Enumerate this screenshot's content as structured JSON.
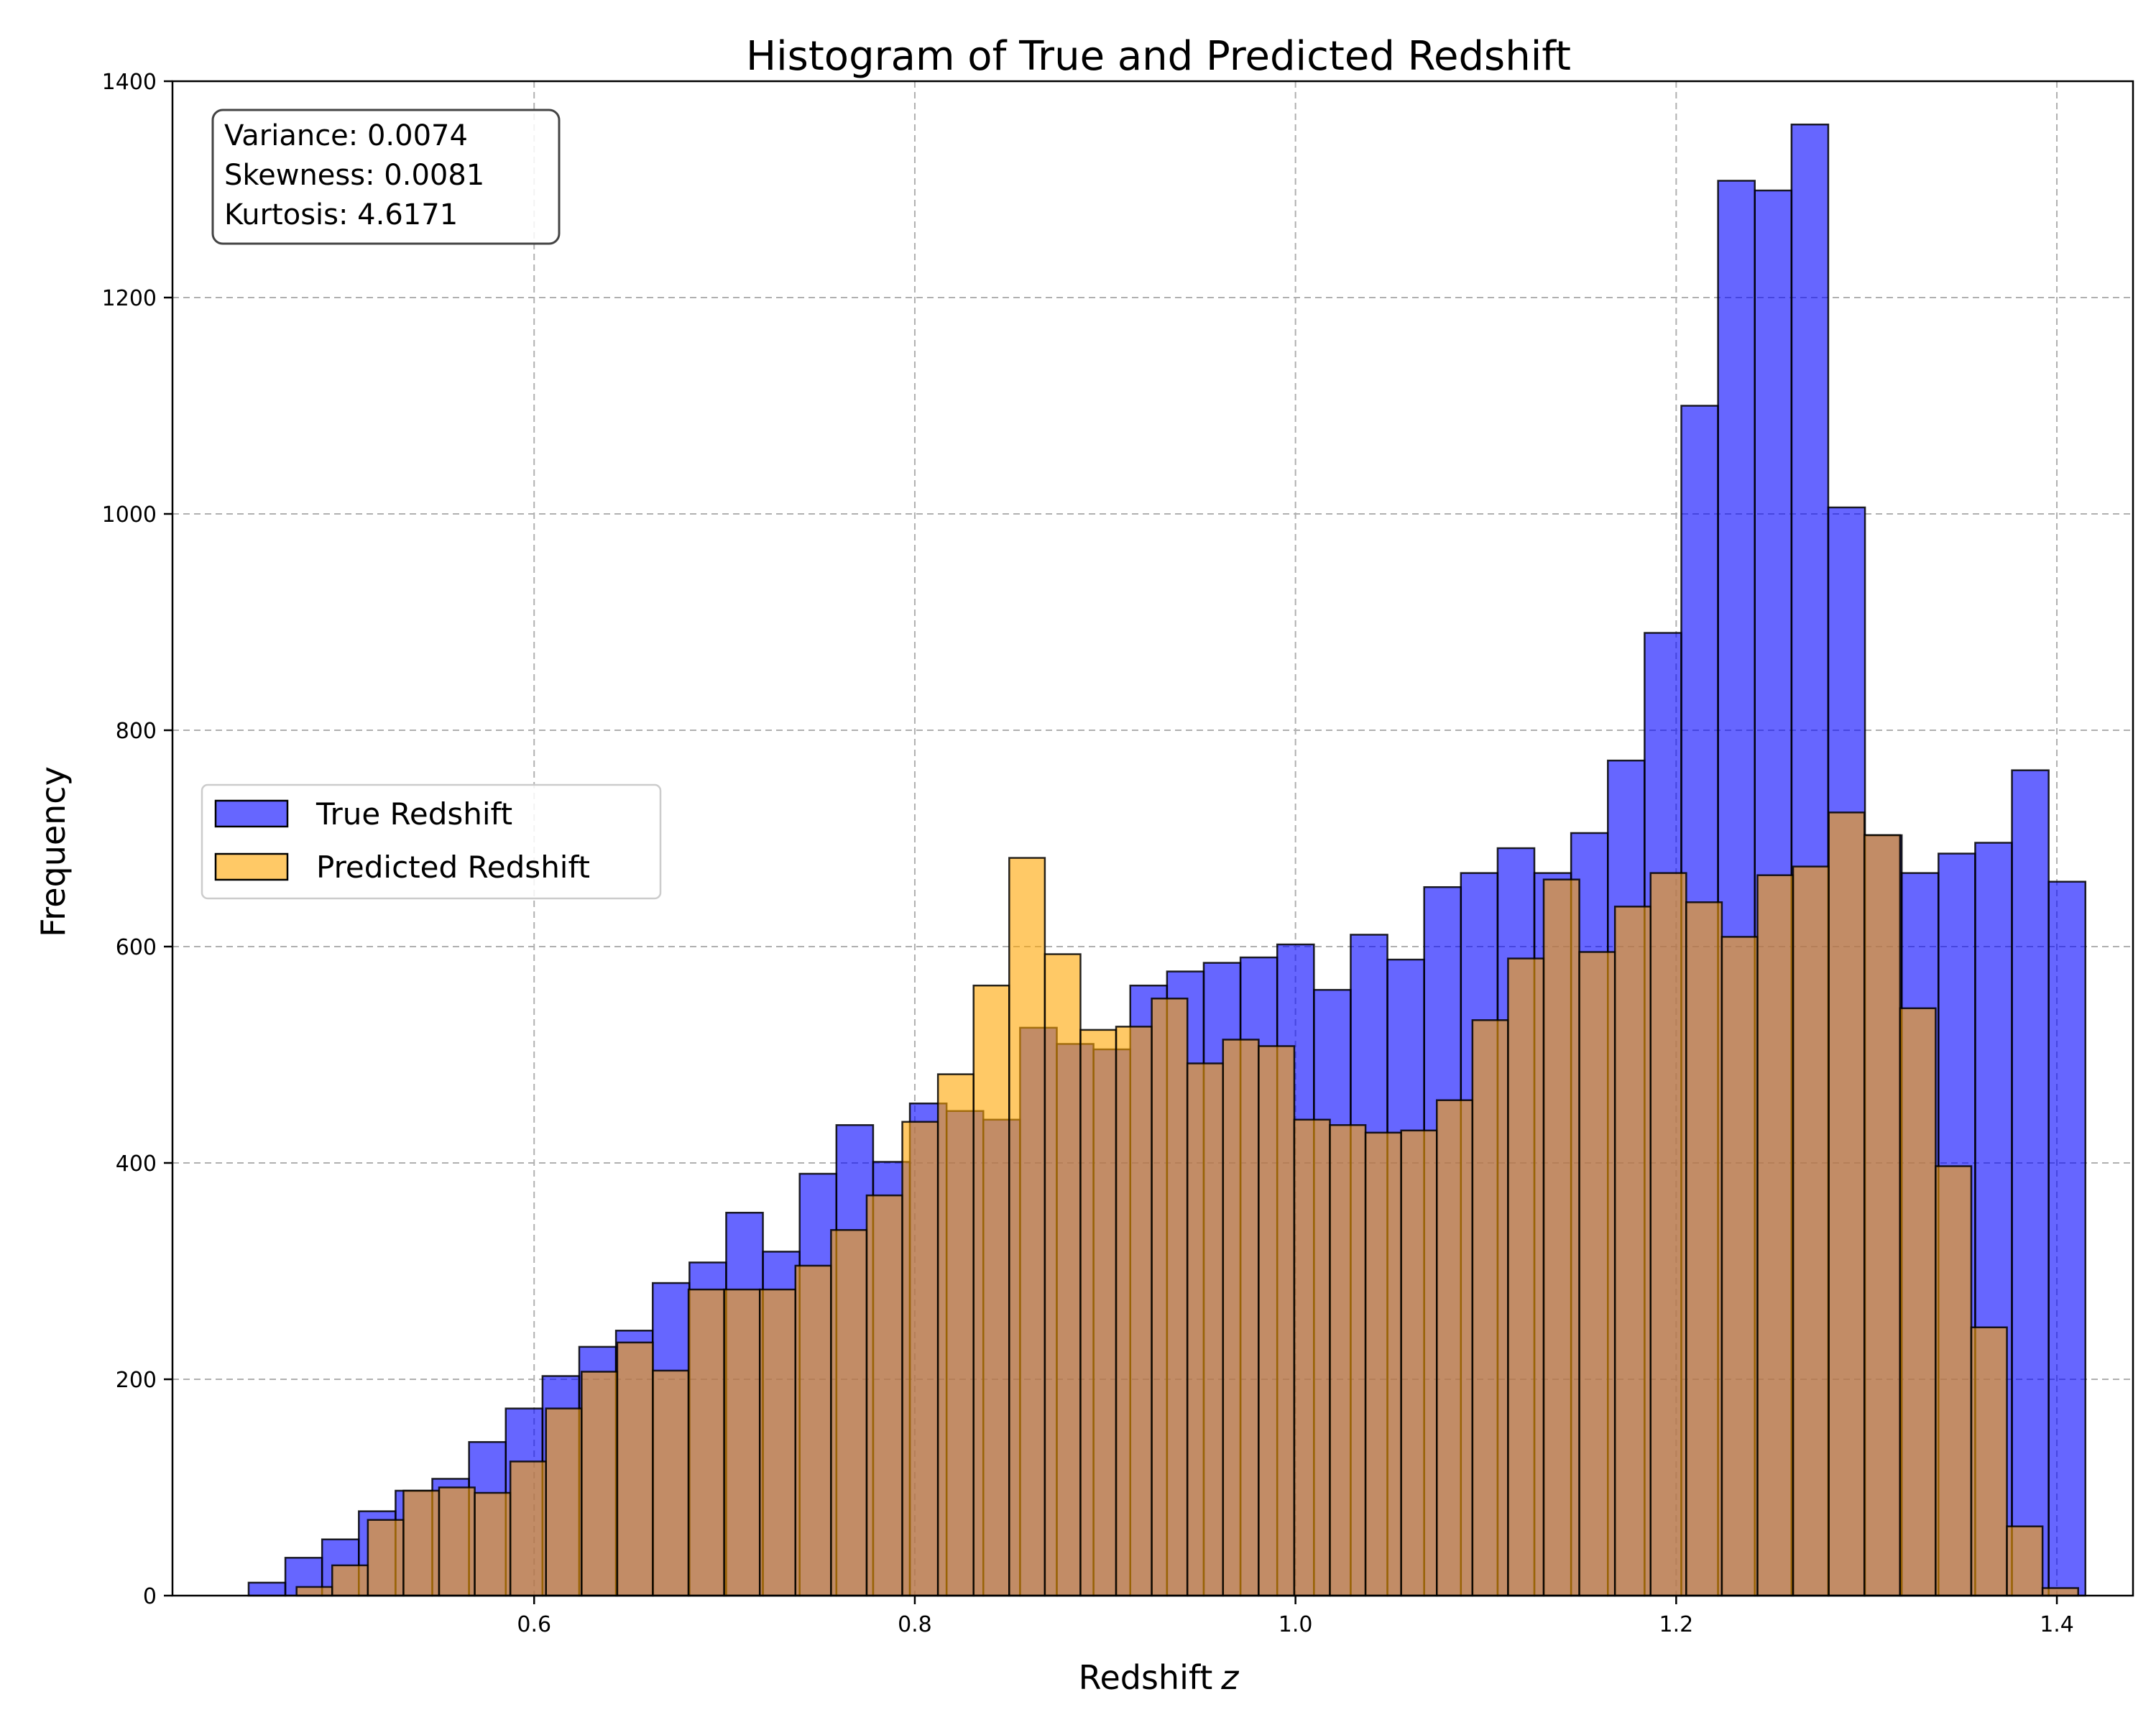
{
  "chart_data": {
    "type": "bar",
    "title": "Histogram of True and Predicted Redshift",
    "xlabel": "Redshift",
    "xlabel_symbol": "z",
    "ylabel": "Frequency",
    "xlim": [
      0.41,
      1.44
    ],
    "ylim": [
      0,
      1400
    ],
    "xticks": [
      0.6,
      0.8,
      1.0,
      1.2,
      1.4
    ],
    "xtick_labels": [
      "0.6",
      "0.8",
      "1.0",
      "1.2",
      "1.4"
    ],
    "yticks": [
      0,
      200,
      400,
      600,
      800,
      1000,
      1200,
      1400
    ],
    "ytick_labels": [
      "0",
      "200",
      "400",
      "600",
      "800",
      "1000",
      "1200",
      "1400"
    ],
    "grid": true,
    "legend_position": "center-left",
    "stats": {
      "variance": "Variance: 0.0074",
      "skewness": "Skewness: 0.0081",
      "kurtosis": "Kurtosis: 4.6171"
    },
    "series": [
      {
        "name": "True Redshift",
        "color": "#0000ff",
        "alpha": 0.6,
        "bin_start": 0.45,
        "bin_width": 0.0193,
        "values": [
          12,
          35,
          52,
          78,
          97,
          108,
          142,
          173,
          203,
          230,
          245,
          289,
          308,
          354,
          318,
          390,
          435,
          401,
          455,
          448,
          440,
          525,
          510,
          505,
          564,
          577,
          585,
          590,
          602,
          560,
          611,
          588,
          655,
          668,
          691,
          668,
          705,
          772,
          890,
          1100,
          1308,
          1299,
          1360,
          1006,
          703,
          668,
          686,
          696,
          763,
          660
        ]
      },
      {
        "name": "Predicted Redshift",
        "color": "#ffa500",
        "alpha": 0.6,
        "bin_start": 0.4752,
        "bin_width": 0.01872,
        "values": [
          8,
          28,
          70,
          97,
          100,
          95,
          124,
          173,
          207,
          234,
          208,
          283,
          283,
          283,
          305,
          338,
          370,
          438,
          482,
          564,
          682,
          593,
          523,
          526,
          552,
          492,
          514,
          508,
          440,
          435,
          428,
          430,
          458,
          532,
          589,
          662,
          595,
          637,
          668,
          641,
          609,
          666,
          674,
          724,
          703,
          543,
          397,
          248,
          64,
          7
        ]
      }
    ]
  }
}
